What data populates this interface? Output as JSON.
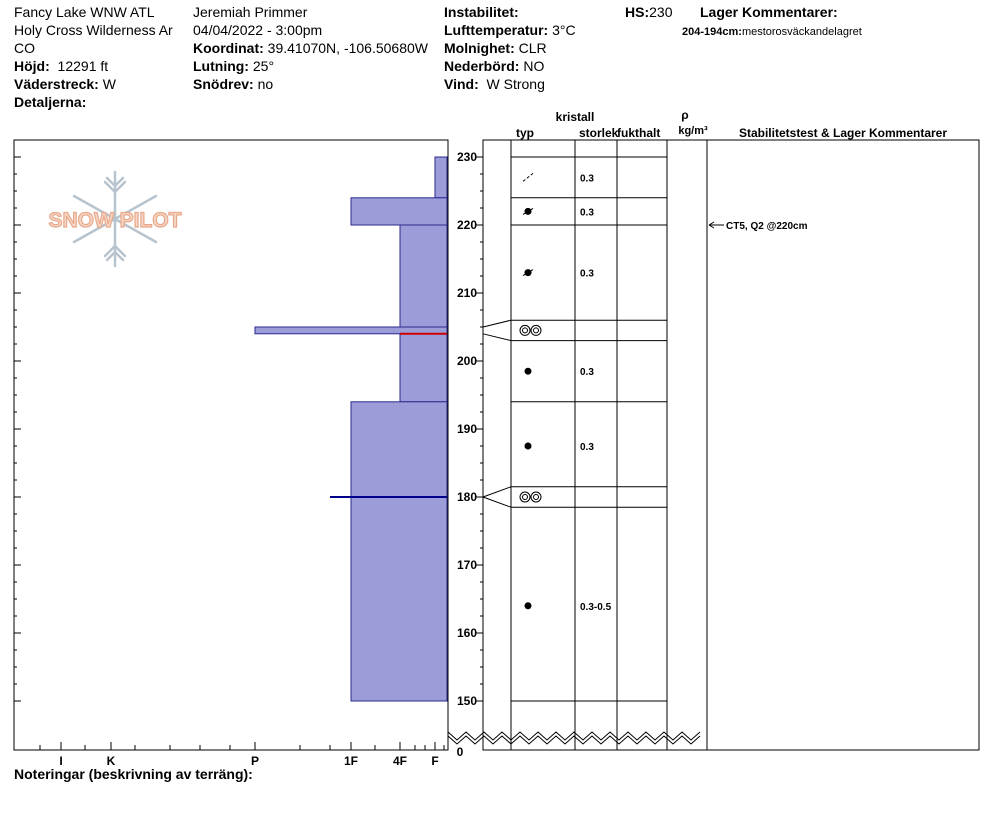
{
  "header": {
    "location_line1": "Fancy Lake WNW ATL",
    "location_line2": "Holy Cross Wilderness Ar",
    "location_line3": "CO",
    "elevation_label": "Höjd:",
    "elevation_value": "12291 ft",
    "aspect_label": "Väderstreck:",
    "aspect_value": "W",
    "details_label": "Detaljerna:",
    "observer": "Jeremiah Primmer",
    "datetime": "04/04/2022 - 3:00pm",
    "coord_label": "Koordinat:",
    "coord_value": "39.41070N, -106.50680W",
    "slope_label": "Lutning:",
    "slope_value": "25°",
    "drift_label": "Snödrev:",
    "drift_value": "no",
    "instability_label": "Instabilitet:",
    "airtemp_label": "Lufttemperatur:",
    "airtemp_value": "3°C",
    "sky_label": "Molnighet:",
    "sky_value": "CLR",
    "precip_label": "Nederbörd:",
    "precip_value": "NO",
    "wind_label": "Vind:",
    "wind_value": "W Strong",
    "hs_label": "HS:",
    "hs_value": "230",
    "layer_comments_label": "Lager Kommentarer:",
    "layer_comment_range": "204-194cm:",
    "layer_comment_text": "mestorosväckandelagret"
  },
  "logo": {
    "text": "SNOW PILOT"
  },
  "columns": {
    "crystal": "kristall",
    "type": "typ",
    "size": "storlek",
    "moisture": "fukthalt",
    "density_symbol": "ρ",
    "density_unit": "kg/m³",
    "stability": "Stabilitetstest & Lager Kommentarer"
  },
  "footer": {
    "notes_label": "Noteringar (beskrivning av terräng):"
  },
  "colors": {
    "hardness_fill": "#9c9cd8",
    "hardness_stroke": "#2a2a90",
    "red_line": "#cc0000",
    "blue_line": "#00008b"
  },
  "chart_data": {
    "type": "snow-profile",
    "y_axis": {
      "ticks": [
        150,
        160,
        170,
        180,
        190,
        200,
        210,
        220,
        230
      ],
      "zero_label": "0",
      "ylim": [
        150,
        230
      ],
      "unit": "cm"
    },
    "hardness_scale": [
      "I",
      "K",
      "P",
      "1F",
      "4F",
      "F"
    ],
    "hardness_layers": [
      {
        "top": 230,
        "bottom": 224,
        "hardness": "F"
      },
      {
        "top": 224,
        "bottom": 220,
        "hardness": "1F"
      },
      {
        "top": 220,
        "bottom": 205,
        "hardness": "4F"
      },
      {
        "top": 205,
        "bottom": 204,
        "hardness": "P"
      },
      {
        "top": 204,
        "bottom": 194,
        "hardness": "4F"
      },
      {
        "top": 194,
        "bottom": 150,
        "hardness": "1F"
      }
    ],
    "lines": [
      {
        "depth": 204,
        "color": "red"
      },
      {
        "depth": 180,
        "color": "blue"
      }
    ],
    "layer_boundaries": [
      230,
      224,
      220,
      206,
      203,
      194,
      181.5,
      178.5,
      150
    ],
    "crystal_rows": [
      {
        "depth": 227,
        "symbol": "decomposing",
        "size": "0.3"
      },
      {
        "depth": 222,
        "symbol": "rounding",
        "size": "0.3"
      },
      {
        "depth": 213,
        "symbol": "rounding",
        "size": "0.3"
      },
      {
        "depth": 204.5,
        "symbol": "melt-freeze",
        "size": ""
      },
      {
        "depth": 198.5,
        "symbol": "rounded",
        "size": "0.3"
      },
      {
        "depth": 187.5,
        "symbol": "rounded",
        "size": "0.3"
      },
      {
        "depth": 180,
        "symbol": "melt-freeze",
        "size": ""
      },
      {
        "depth": 164,
        "symbol": "rounded",
        "size": "0.3-0.5"
      }
    ],
    "stability_tests": [
      {
        "depth": 220,
        "label": "CT5, Q2 @220cm"
      }
    ]
  }
}
